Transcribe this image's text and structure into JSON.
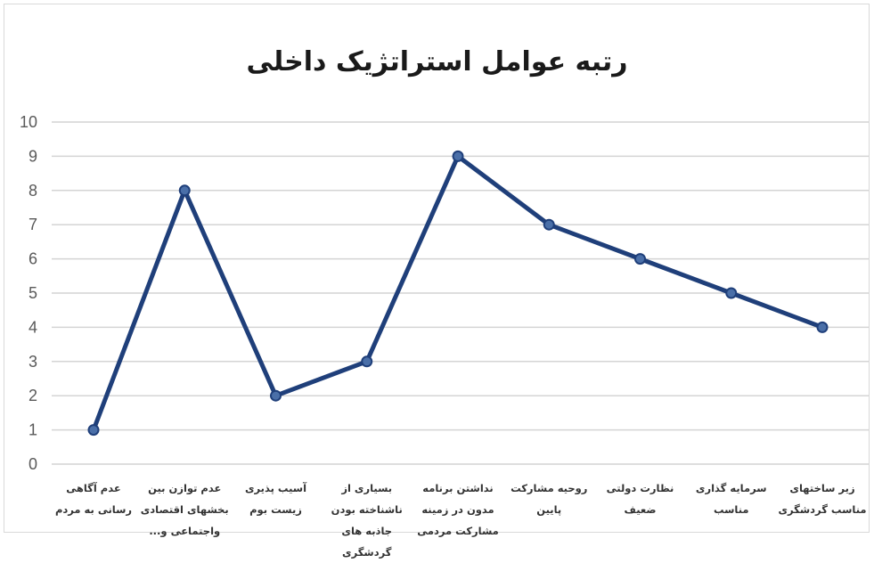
{
  "chart_data": {
    "type": "line",
    "title": "رتبه عوامل استراتژیک داخلی",
    "categories": [
      "عدم آگاهی رسانی به مردم",
      "عدم توازن بین بخشهای اقتصادی واجتماعی و...",
      "آسیب پذیری زیست بوم",
      "بسیاری از ناشناخته بودن جاذبه های گردشگری",
      "نداشتن برنامه مدون در زمینه مشارکت مردمی",
      "روحیه مشارکت پایین",
      "نظارت دولتی ضعیف",
      "سرمایه گذاری مناسب",
      "زیر ساختهای مناسب گردشگری"
    ],
    "values": [
      1,
      8,
      2,
      3,
      9,
      7,
      6,
      5,
      4
    ],
    "ylim": [
      0,
      10
    ],
    "yticks": [
      "0",
      "1",
      "2",
      "3",
      "4",
      "5",
      "6",
      "7",
      "8",
      "9",
      "10"
    ],
    "grid": true,
    "legend": "none",
    "line_color": "#1f3f7a"
  }
}
